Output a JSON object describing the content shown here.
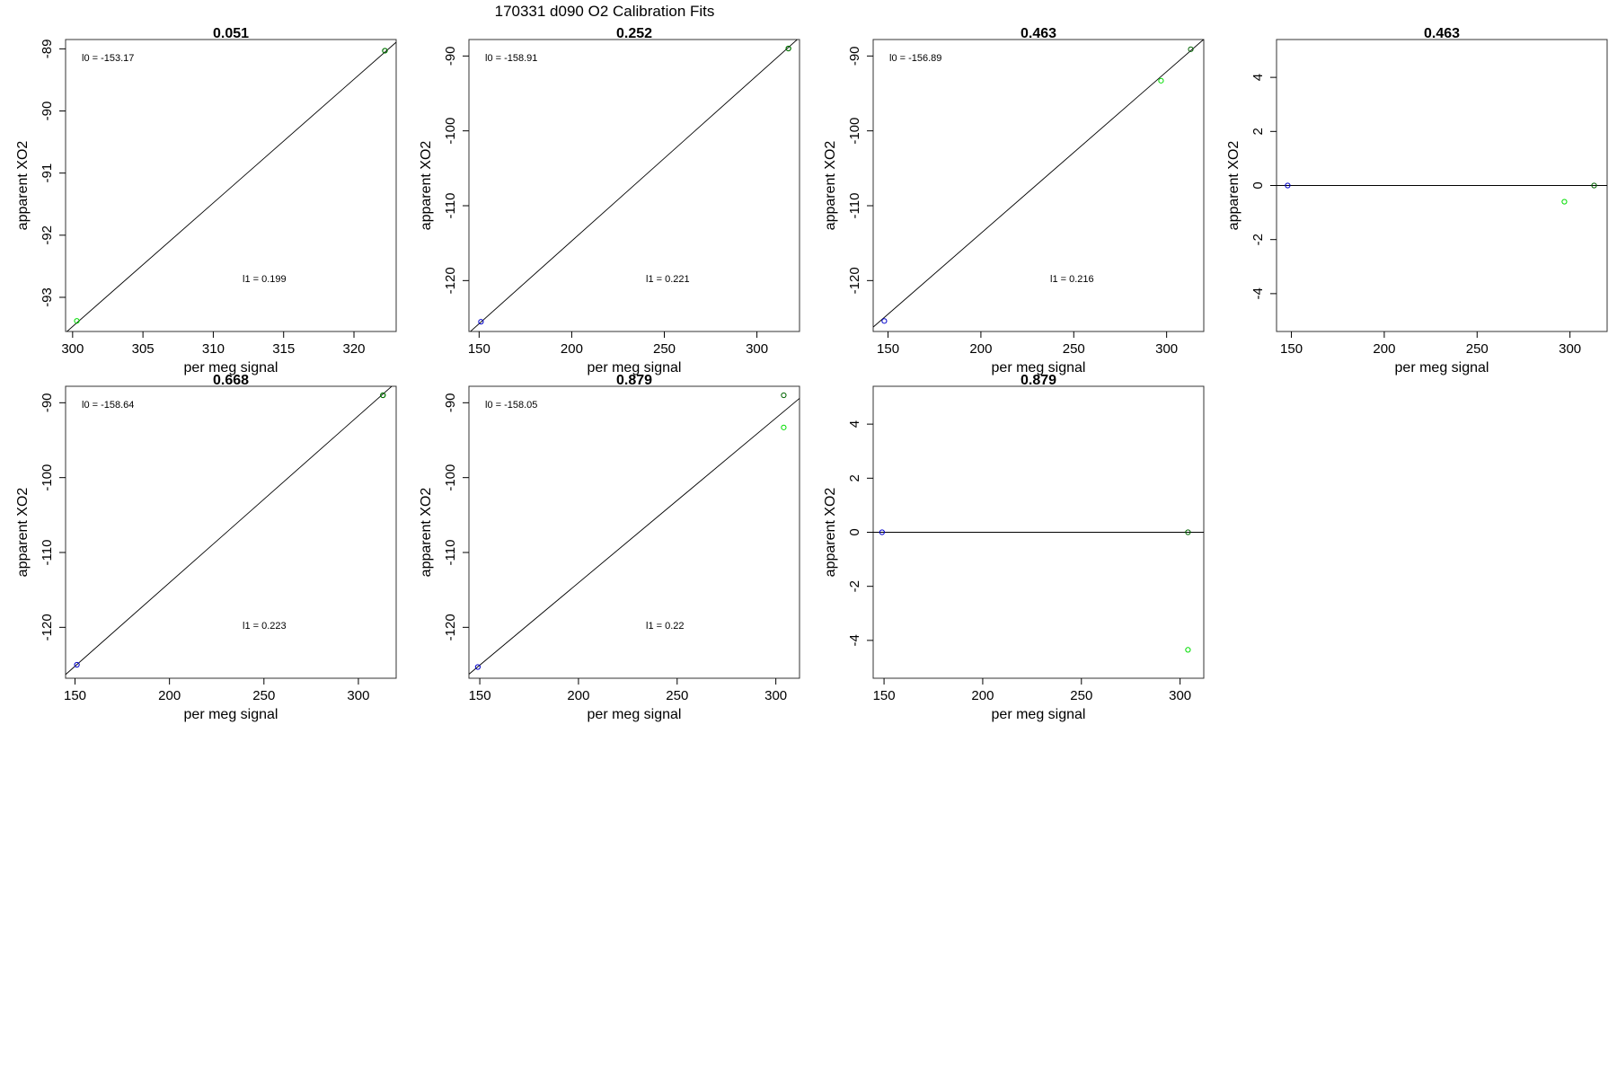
{
  "main_title": "170331   d090   O2 Calibration Fits",
  "colors": {
    "green": "#00dd00",
    "blue": "#0000cc",
    "dark_green": "#006400",
    "frame": "#000000"
  },
  "chart_data": [
    {
      "type": "scatter",
      "title": "0.051",
      "xlabel": "per meg signal",
      "ylabel": "apparent XO2",
      "xlim": [
        299.5,
        323.0
      ],
      "ylim": [
        -93.55,
        -88.85
      ],
      "xticks": [
        300,
        305,
        310,
        315,
        320
      ],
      "xtick_labels": [
        "300",
        "305",
        "310",
        "315",
        "320"
      ],
      "yticks": [
        -89,
        -90,
        -91,
        -92,
        -93
      ],
      "ytick_labels": [
        "-89",
        "-90",
        "-91",
        "-92",
        "-93"
      ],
      "fit_line": {
        "intercept": -153.17,
        "slope": 0.199
      },
      "annotations": {
        "intercept_label": "l0 = -153.17",
        "slope_label": "l1 = 0.199"
      },
      "points": [
        {
          "x": 300.3,
          "y": -93.38,
          "color": "green"
        },
        {
          "x": 322.2,
          "y": -89.03,
          "color": "green"
        },
        {
          "x": 322.2,
          "y": -89.03,
          "color": "dark_green"
        }
      ]
    },
    {
      "type": "scatter",
      "title": "0.252",
      "xlabel": "per meg signal",
      "ylabel": "apparent XO2",
      "xlim": [
        144.5,
        323.0
      ],
      "ylim": [
        -126.8,
        -87.8
      ],
      "xticks": [
        150,
        200,
        250,
        300
      ],
      "xtick_labels": [
        "150",
        "200",
        "250",
        "300"
      ],
      "yticks": [
        -90,
        -100,
        -110,
        -120
      ],
      "ytick_labels": [
        "-90",
        "-100",
        "-110",
        "-120"
      ],
      "fit_line": {
        "intercept": -158.91,
        "slope": 0.221
      },
      "annotations": {
        "intercept_label": "l0 = -158.91",
        "slope_label": "l1 = 0.221"
      },
      "points": [
        {
          "x": 151,
          "y": -125.5,
          "color": "blue"
        },
        {
          "x": 317,
          "y": -89.0,
          "color": "green"
        },
        {
          "x": 317,
          "y": -89.0,
          "color": "dark_green"
        }
      ]
    },
    {
      "type": "scatter",
      "title": "0.463",
      "xlabel": "per meg signal",
      "ylabel": "apparent XO2",
      "xlim": [
        142.0,
        320.0
      ],
      "ylim": [
        -126.8,
        -87.8
      ],
      "xticks": [
        150,
        200,
        250,
        300
      ],
      "xtick_labels": [
        "150",
        "200",
        "250",
        "300"
      ],
      "yticks": [
        -90,
        -100,
        -110,
        -120
      ],
      "ytick_labels": [
        "-90",
        "-100",
        "-110",
        "-120"
      ],
      "fit_line": {
        "intercept": -156.89,
        "slope": 0.216
      },
      "annotations": {
        "intercept_label": "l0 = -156.89",
        "slope_label": "l1 = 0.216"
      },
      "points": [
        {
          "x": 148,
          "y": -125.4,
          "color": "blue"
        },
        {
          "x": 297,
          "y": -93.3,
          "color": "green"
        },
        {
          "x": 313,
          "y": -89.1,
          "color": "dark_green"
        }
      ]
    },
    {
      "type": "scatter",
      "title": "0.463",
      "xlabel": "per meg signal",
      "ylabel": "apparent XO2",
      "xlim": [
        142.0,
        320.0
      ],
      "ylim": [
        -5.4,
        5.4
      ],
      "xticks": [
        150,
        200,
        250,
        300
      ],
      "xtick_labels": [
        "150",
        "200",
        "250",
        "300"
      ],
      "yticks": [
        4,
        2,
        0,
        -2,
        -4
      ],
      "ytick_labels": [
        "4",
        "2",
        "0",
        "-2",
        "-4"
      ],
      "hline": 0,
      "points": [
        {
          "x": 148,
          "y": 0.0,
          "color": "blue"
        },
        {
          "x": 297,
          "y": -0.6,
          "color": "green"
        },
        {
          "x": 313,
          "y": 0.0,
          "color": "dark_green"
        }
      ]
    },
    {
      "type": "scatter",
      "title": "0.668",
      "xlabel": "per meg signal",
      "ylabel": "apparent XO2",
      "xlim": [
        145.0,
        320.0
      ],
      "ylim": [
        -126.8,
        -87.8
      ],
      "xticks": [
        150,
        200,
        250,
        300
      ],
      "xtick_labels": [
        "150",
        "200",
        "250",
        "300"
      ],
      "yticks": [
        -90,
        -100,
        -110,
        -120
      ],
      "ytick_labels": [
        "-90",
        "-100",
        "-110",
        "-120"
      ],
      "fit_line": {
        "intercept": -158.64,
        "slope": 0.223
      },
      "annotations": {
        "intercept_label": "l0 = -158.64",
        "slope_label": "l1 = 0.223"
      },
      "points": [
        {
          "x": 151,
          "y": -125.0,
          "color": "blue"
        },
        {
          "x": 313,
          "y": -89.0,
          "color": "green"
        },
        {
          "x": 313,
          "y": -89.0,
          "color": "dark_green"
        }
      ]
    },
    {
      "type": "scatter",
      "title": "0.879",
      "xlabel": "per meg signal",
      "ylabel": "apparent XO2",
      "xlim": [
        144.5,
        312.0
      ],
      "ylim": [
        -126.8,
        -87.8
      ],
      "xticks": [
        150,
        200,
        250,
        300
      ],
      "xtick_labels": [
        "150",
        "200",
        "250",
        "300"
      ],
      "yticks": [
        -90,
        -100,
        -110,
        -120
      ],
      "ytick_labels": [
        "-90",
        "-100",
        "-110",
        "-120"
      ],
      "fit_line": {
        "intercept": -158.05,
        "slope": 0.22
      },
      "annotations": {
        "intercept_label": "l0 = -158.05",
        "slope_label": "l1 = 0.22"
      },
      "points": [
        {
          "x": 149,
          "y": -125.3,
          "color": "blue"
        },
        {
          "x": 304,
          "y": -93.3,
          "color": "green"
        },
        {
          "x": 304,
          "y": -89.0,
          "color": "dark_green"
        }
      ]
    },
    {
      "type": "scatter",
      "title": "0.879",
      "xlabel": "per meg signal",
      "ylabel": "apparent XO2",
      "xlim": [
        144.5,
        312.0
      ],
      "ylim": [
        -5.4,
        5.4
      ],
      "xticks": [
        150,
        200,
        250,
        300
      ],
      "xtick_labels": [
        "150",
        "200",
        "250",
        "300"
      ],
      "yticks": [
        4,
        2,
        0,
        -2,
        -4
      ],
      "ytick_labels": [
        "4",
        "2",
        "0",
        "-2",
        "-4"
      ],
      "hline": 0,
      "points": [
        {
          "x": 149,
          "y": 0.0,
          "color": "blue"
        },
        {
          "x": 304,
          "y": -4.35,
          "color": "green"
        },
        {
          "x": 304,
          "y": 0.0,
          "color": "dark_green"
        }
      ]
    }
  ]
}
